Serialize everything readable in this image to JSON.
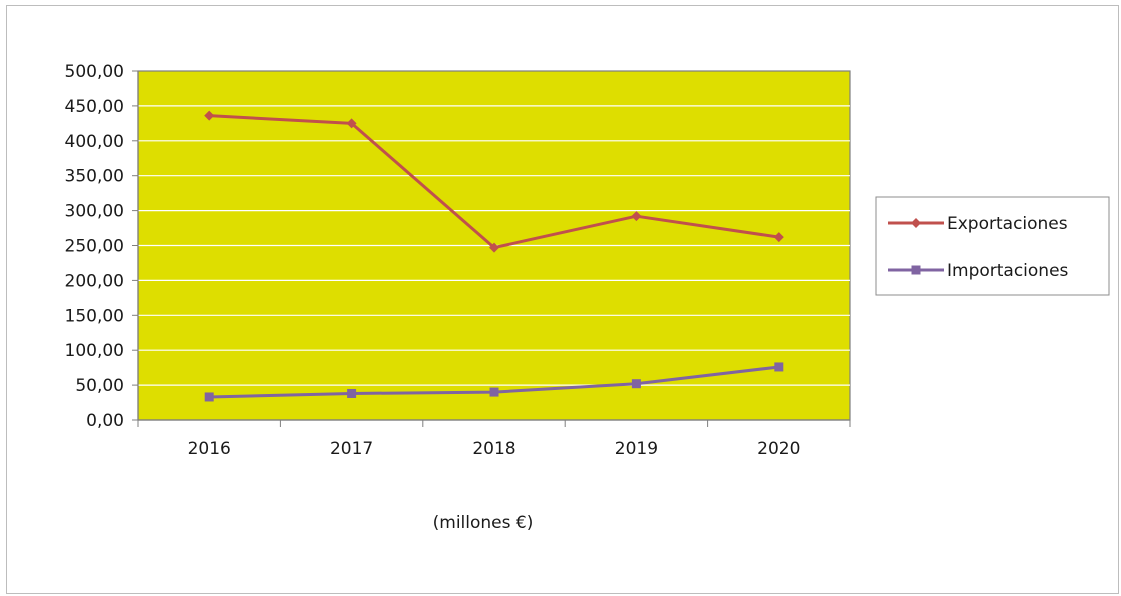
{
  "chart_data": {
    "type": "line",
    "categories": [
      "2016",
      "2017",
      "2018",
      "2019",
      "2020"
    ],
    "series": [
      {
        "name": "Exportaciones",
        "values": [
          436,
          425,
          247,
          292,
          262
        ],
        "color": "#c0504d",
        "marker": "diamond"
      },
      {
        "name": "Importaciones",
        "values": [
          33,
          38,
          40,
          52,
          76
        ],
        "color": "#8064a2",
        "marker": "square"
      }
    ],
    "ylim": [
      0,
      500
    ],
    "y_ticks": [
      "0,00",
      "50,00",
      "100,00",
      "150,00",
      "200,00",
      "250,00",
      "300,00",
      "350,00",
      "400,00",
      "450,00",
      "500,00"
    ],
    "xlabel": "(millones €)",
    "grid": true,
    "plot_background": "#dede00",
    "legend_position": "right"
  }
}
